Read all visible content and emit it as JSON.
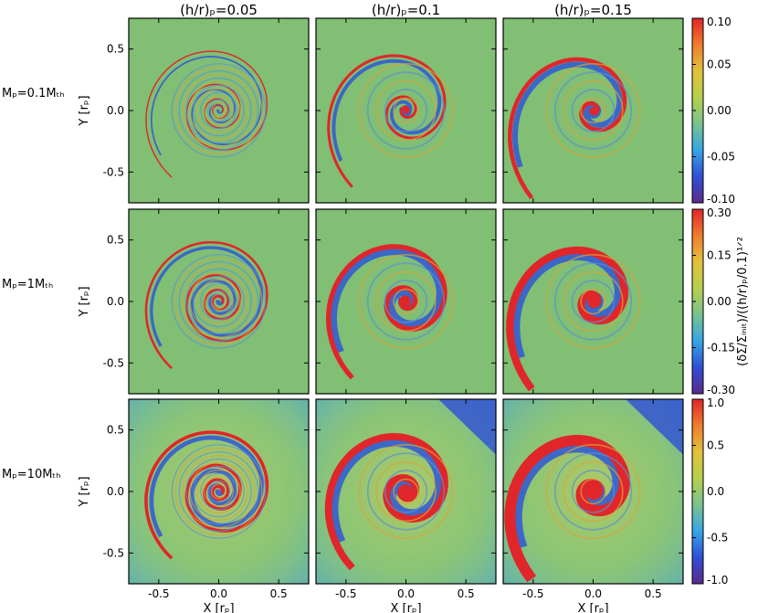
{
  "chart_data": {
    "type": "heatmap",
    "column_titles": [
      "(h/r)ₚ=0.05",
      "(h/r)ₚ=0.1",
      "(h/r)ₚ=0.15"
    ],
    "row_titles": [
      "Mₚ=0.1Mₜₕ",
      "Mₚ=1Mₜₕ",
      "Mₚ=10Mₜₕ"
    ],
    "xlabel": "X [rₚ]",
    "ylabel": "Y [rₚ]",
    "colorbar_label": "(δΣ/Σᵢₙᵢₜ)/((h/r)ₚ/0.1)¹ᐟ²",
    "xlim": [
      -0.75,
      0.75
    ],
    "ylim": [
      -0.75,
      0.75
    ],
    "x_ticks": [
      -0.5,
      0.0,
      0.5
    ],
    "y_ticks": [
      -0.5,
      0.0,
      0.5
    ],
    "x_tick_labels": [
      "-0.5",
      "0.0",
      "0.5"
    ],
    "y_tick_labels": [
      "-0.5",
      "0.0",
      "0.5"
    ],
    "h_over_r": [
      0.05,
      0.1,
      0.15
    ],
    "planet_mass_mth": [
      0.1,
      1,
      10
    ],
    "colorbar_ticks": [
      {
        "values": [
          0.1,
          0.05,
          0.0,
          -0.05,
          -0.1
        ],
        "labels": [
          "0.10",
          "0.05",
          "0.00",
          "-0.05",
          "-0.10"
        ],
        "range": [
          -0.1,
          0.1
        ]
      },
      {
        "values": [
          0.3,
          0.15,
          0.0,
          -0.15,
          -0.3
        ],
        "labels": [
          "0.30",
          "0.15",
          "0.00",
          "-0.15",
          "-0.30"
        ],
        "range": [
          -0.3,
          0.3
        ]
      },
      {
        "values": [
          1.0,
          0.5,
          0.0,
          -0.5,
          -1.0
        ],
        "labels": [
          "1.0",
          "0.5",
          "0.0",
          "-0.5",
          "-1.0"
        ],
        "range": [
          -1.0,
          1.0
        ]
      }
    ],
    "colormap": [
      "#5b2b8c",
      "#2f4fd6",
      "#36a6e6",
      "#78c38e",
      "#b6cf4c",
      "#e2c23c",
      "#f07c2d",
      "#e0262a"
    ],
    "background_color": "#80bf74"
  }
}
